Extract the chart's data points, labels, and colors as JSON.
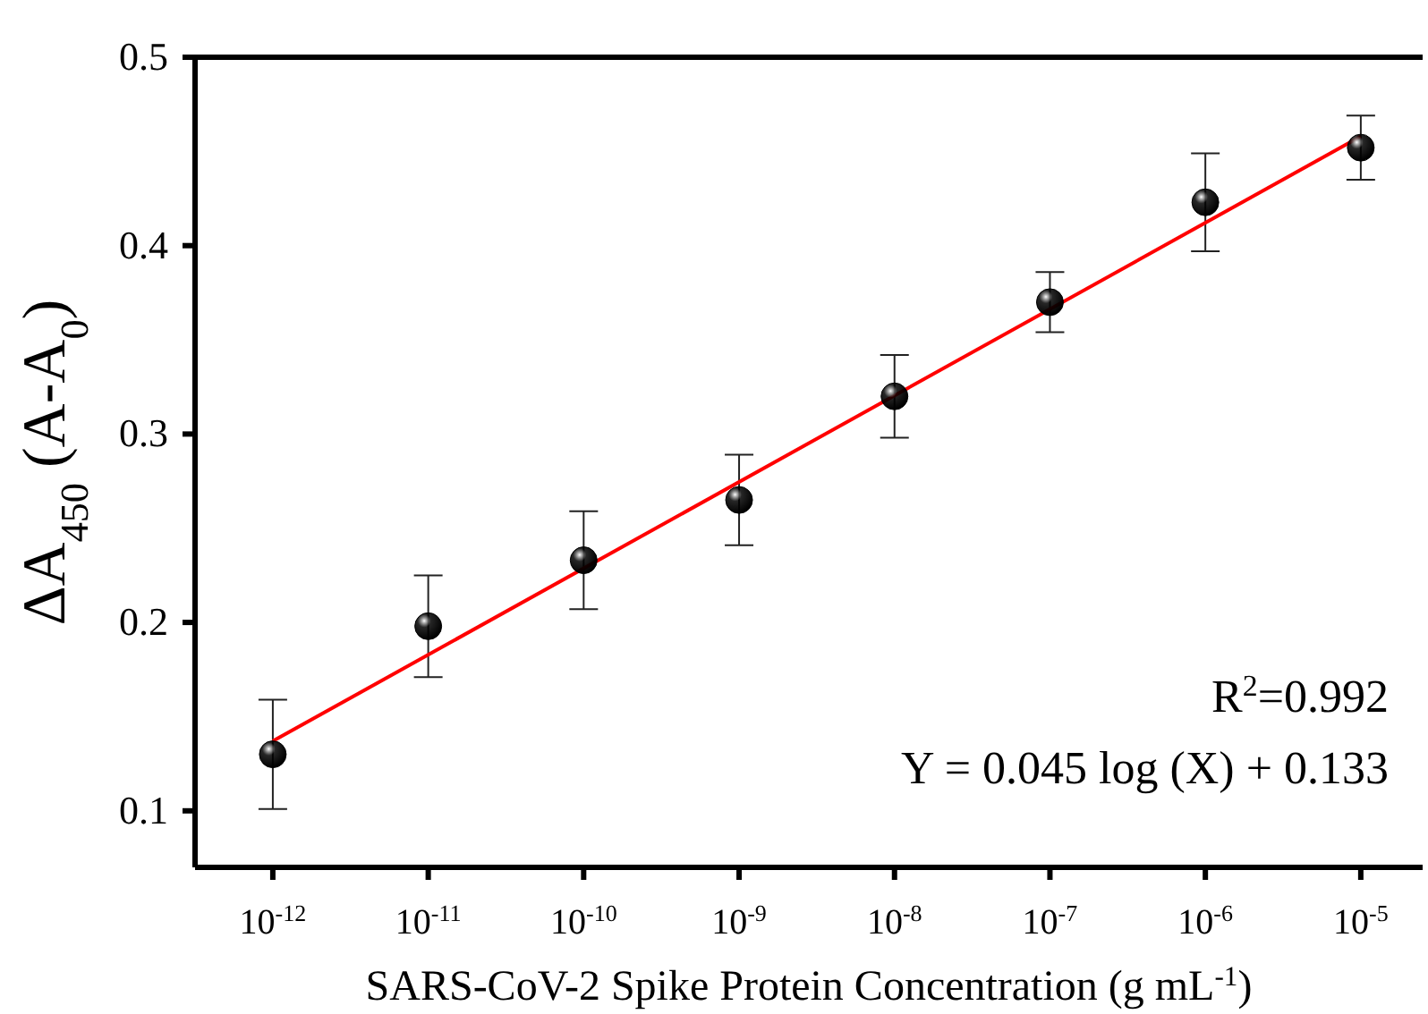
{
  "chart_data": {
    "type": "scatter",
    "xlabel": "SARS-CoV-2 Spike Protein Concentration (g mL$^{-1}$)",
    "ylabel": "ΔA$_{450}$ (A-A$_{0}$)",
    "log": "x",
    "xlim": [
      3.16e-13,
      2.5e-05
    ],
    "xticks": [
      {
        "value": 1e-12,
        "label": "10$^{-12}$"
      },
      {
        "value": 1e-11,
        "label": "10$^{-11}$"
      },
      {
        "value": 1e-10,
        "label": "10$^{-10}$"
      },
      {
        "value": 1e-09,
        "label": "10$^{-9}$"
      },
      {
        "value": 1e-08,
        "label": "10$^{-8}$"
      },
      {
        "value": 1e-07,
        "label": "10$^{-7}$"
      },
      {
        "value": 1e-06,
        "label": "10$^{-6}$"
      },
      {
        "value": 1e-05,
        "label": "10$^{-5}$"
      }
    ],
    "ylim": [
      0.07,
      0.5
    ],
    "yticks": [
      0.1,
      0.2,
      0.3,
      0.4,
      0.5
    ],
    "x": [
      1e-12,
      1e-11,
      1e-10,
      1e-09,
      1e-08,
      1e-07,
      1e-06,
      1e-05
    ],
    "series": [
      {
        "color": "#000000",
        "marker": "circle",
        "values": [
          0.13,
          0.198,
          0.233,
          0.265,
          0.32,
          0.37,
          0.423,
          0.452
        ],
        "errors": [
          0.029,
          0.027,
          0.026,
          0.024,
          0.022,
          0.016,
          0.026,
          0.017
        ]
      },
      {
        "type": "line",
        "color": "#ff0000",
        "x": [
          1e-12,
          1e-05
        ],
        "values": [
          0.137,
          0.458
        ]
      }
    ],
    "grid": false,
    "legend": false,
    "annotations": [
      "R$^{2}$=0.992",
      "Y = 0.045 log (X) + 0.133"
    ]
  }
}
